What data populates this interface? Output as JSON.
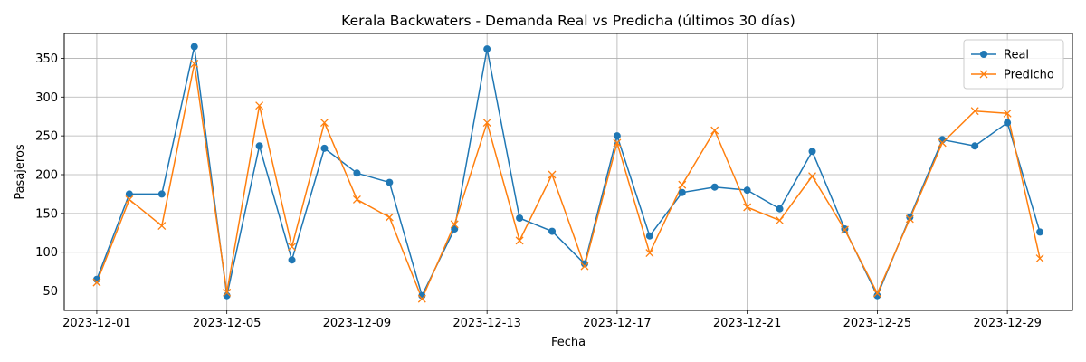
{
  "chart_data": {
    "type": "line",
    "title": "Kerala Backwaters - Demanda Real vs Predicha (últimos 30 días)",
    "xlabel": "Fecha",
    "ylabel": "Pasajeros",
    "x": [
      "2023-12-01",
      "2023-12-02",
      "2023-12-03",
      "2023-12-04",
      "2023-12-05",
      "2023-12-06",
      "2023-12-07",
      "2023-12-08",
      "2023-12-09",
      "2023-12-10",
      "2023-12-11",
      "2023-12-12",
      "2023-12-13",
      "2023-12-14",
      "2023-12-15",
      "2023-12-16",
      "2023-12-17",
      "2023-12-18",
      "2023-12-19",
      "2023-12-20",
      "2023-12-21",
      "2023-12-22",
      "2023-12-23",
      "2023-12-24",
      "2023-12-25",
      "2023-12-26",
      "2023-12-27",
      "2023-12-28",
      "2023-12-29",
      "2023-12-30"
    ],
    "xticks": [
      "2023-12-01",
      "2023-12-05",
      "2023-12-09",
      "2023-12-13",
      "2023-12-17",
      "2023-12-21",
      "2023-12-25",
      "2023-12-29"
    ],
    "yticks": [
      50,
      100,
      150,
      200,
      250,
      300,
      350
    ],
    "xlim": [
      "2023-11-30",
      "2023-12-31"
    ],
    "ylim": [
      25,
      382
    ],
    "grid": true,
    "legend_position": "top-right",
    "series": [
      {
        "name": "Real",
        "color": "#1f77b4",
        "marker": "circle",
        "values": [
          65,
          175,
          175,
          365,
          44,
          237,
          90,
          234,
          202,
          190,
          44,
          130,
          362,
          144,
          127,
          85,
          250,
          121,
          177,
          184,
          180,
          156,
          230,
          130,
          44,
          145,
          245,
          237,
          267,
          126
        ]
      },
      {
        "name": "Predicho",
        "color": "#ff7f0e",
        "marker": "x",
        "values": [
          61,
          168,
          134,
          343,
          48,
          289,
          107,
          267,
          168,
          145,
          40,
          136,
          267,
          115,
          200,
          82,
          241,
          99,
          187,
          257,
          158,
          141,
          198,
          129,
          47,
          143,
          241,
          282,
          279,
          92
        ]
      }
    ]
  }
}
